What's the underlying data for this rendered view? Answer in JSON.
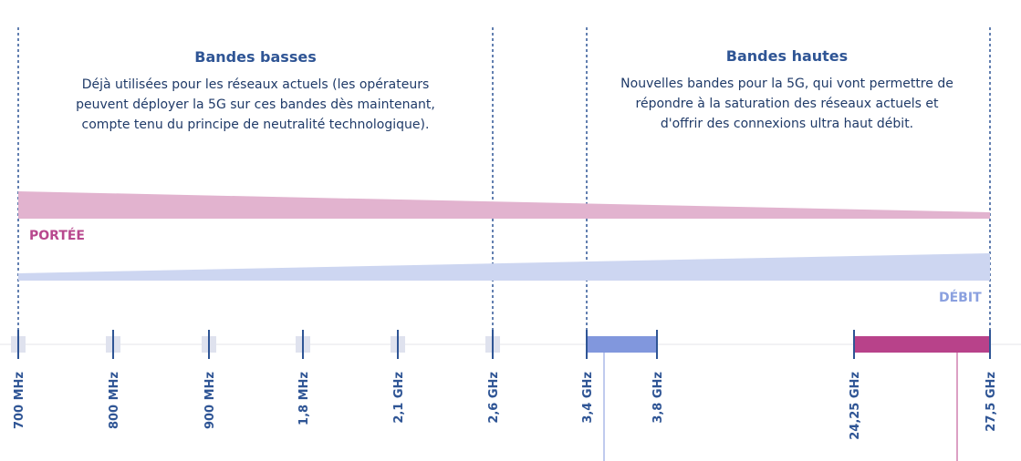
{
  "low_bands": {
    "title": "Bandes basses",
    "lines": [
      "Déjà utilisées pour les réseaux actuels (les opérateurs",
      "peuvent déployer la 5G sur ces bandes dès maintenant,",
      "compte tenu du principe de neutralité technologique)."
    ]
  },
  "high_bands": {
    "title": "Bandes hautes",
    "lines": [
      "Nouvelles bandes pour la 5G, qui vont permettre de",
      "répondre à la saturation des réseaux actuels et",
      "d'offrir des connexions ultra haut débit."
    ]
  },
  "range_label": "PORTÉE",
  "throughput_label": "DÉBIT",
  "frequencies": [
    "700 MHz",
    "800 MHz",
    "900 MHz",
    "1,8 MHz",
    "2,1 GHz",
    "2,6 GHz",
    "3,4 GHz",
    "3,8 GHz",
    "24,25 GHz",
    "27,5 GHz"
  ],
  "colors": {
    "title": "#2f5595",
    "text": "#1f3a68",
    "range_band": "#e2b3cf",
    "range_label": "#b8488e",
    "throughput_band": "#cdd6f1",
    "throughput_label": "#8aa0df",
    "band_3_4_3_8": "#8197dd",
    "band_24_27": "#b8428a",
    "existing_band_marker": "#dfe2ee",
    "axis": "#2f5595"
  }
}
